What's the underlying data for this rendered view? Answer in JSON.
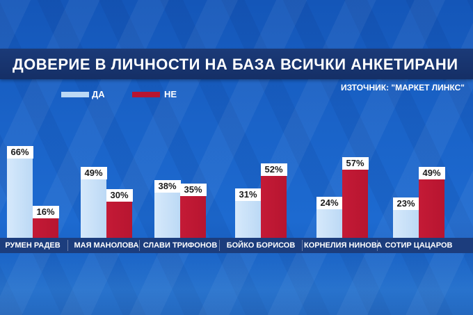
{
  "header": {
    "title": "ДОВЕРИЕ В ЛИЧНОСТИ НА БАЗА ВСИЧКИ АНКЕТИРАНИ",
    "source": "ИЗТОЧНИК: \"МАРКЕТ ЛИНКС\""
  },
  "legend": {
    "yes_label": "ДА",
    "no_label": "НЕ"
  },
  "colors": {
    "yes": "#bcd9f5",
    "no": "#b71530"
  },
  "chart_data": {
    "type": "bar",
    "title": "ДОВЕРИЕ В ЛИЧНОСТИ НА БАЗА ВСИЧКИ АНКЕТИРАНИ",
    "categories": [
      "РУМЕН РАДЕВ",
      "МАЯ МАНОЛОВА",
      "СЛАВИ ТРИФОНОВ",
      "БОЙКО БОРИСОВ",
      "КОРНЕЛИЯ НИНОВА",
      "СОТИР ЦАЦАРОВ"
    ],
    "series": [
      {
        "name": "ДА",
        "values": [
          66,
          49,
          38,
          31,
          24,
          23
        ],
        "labels": [
          "66%",
          "49%",
          "38%",
          "31%",
          "24%",
          "23%"
        ]
      },
      {
        "name": "НЕ",
        "values": [
          16,
          30,
          35,
          52,
          57,
          49
        ],
        "labels": [
          "16%",
          "30%",
          "35%",
          "52%",
          "57%",
          "49%"
        ]
      }
    ],
    "xlabel": "",
    "ylabel": "",
    "ylim": [
      0,
      100
    ],
    "legend": "top-left",
    "grid": false
  }
}
